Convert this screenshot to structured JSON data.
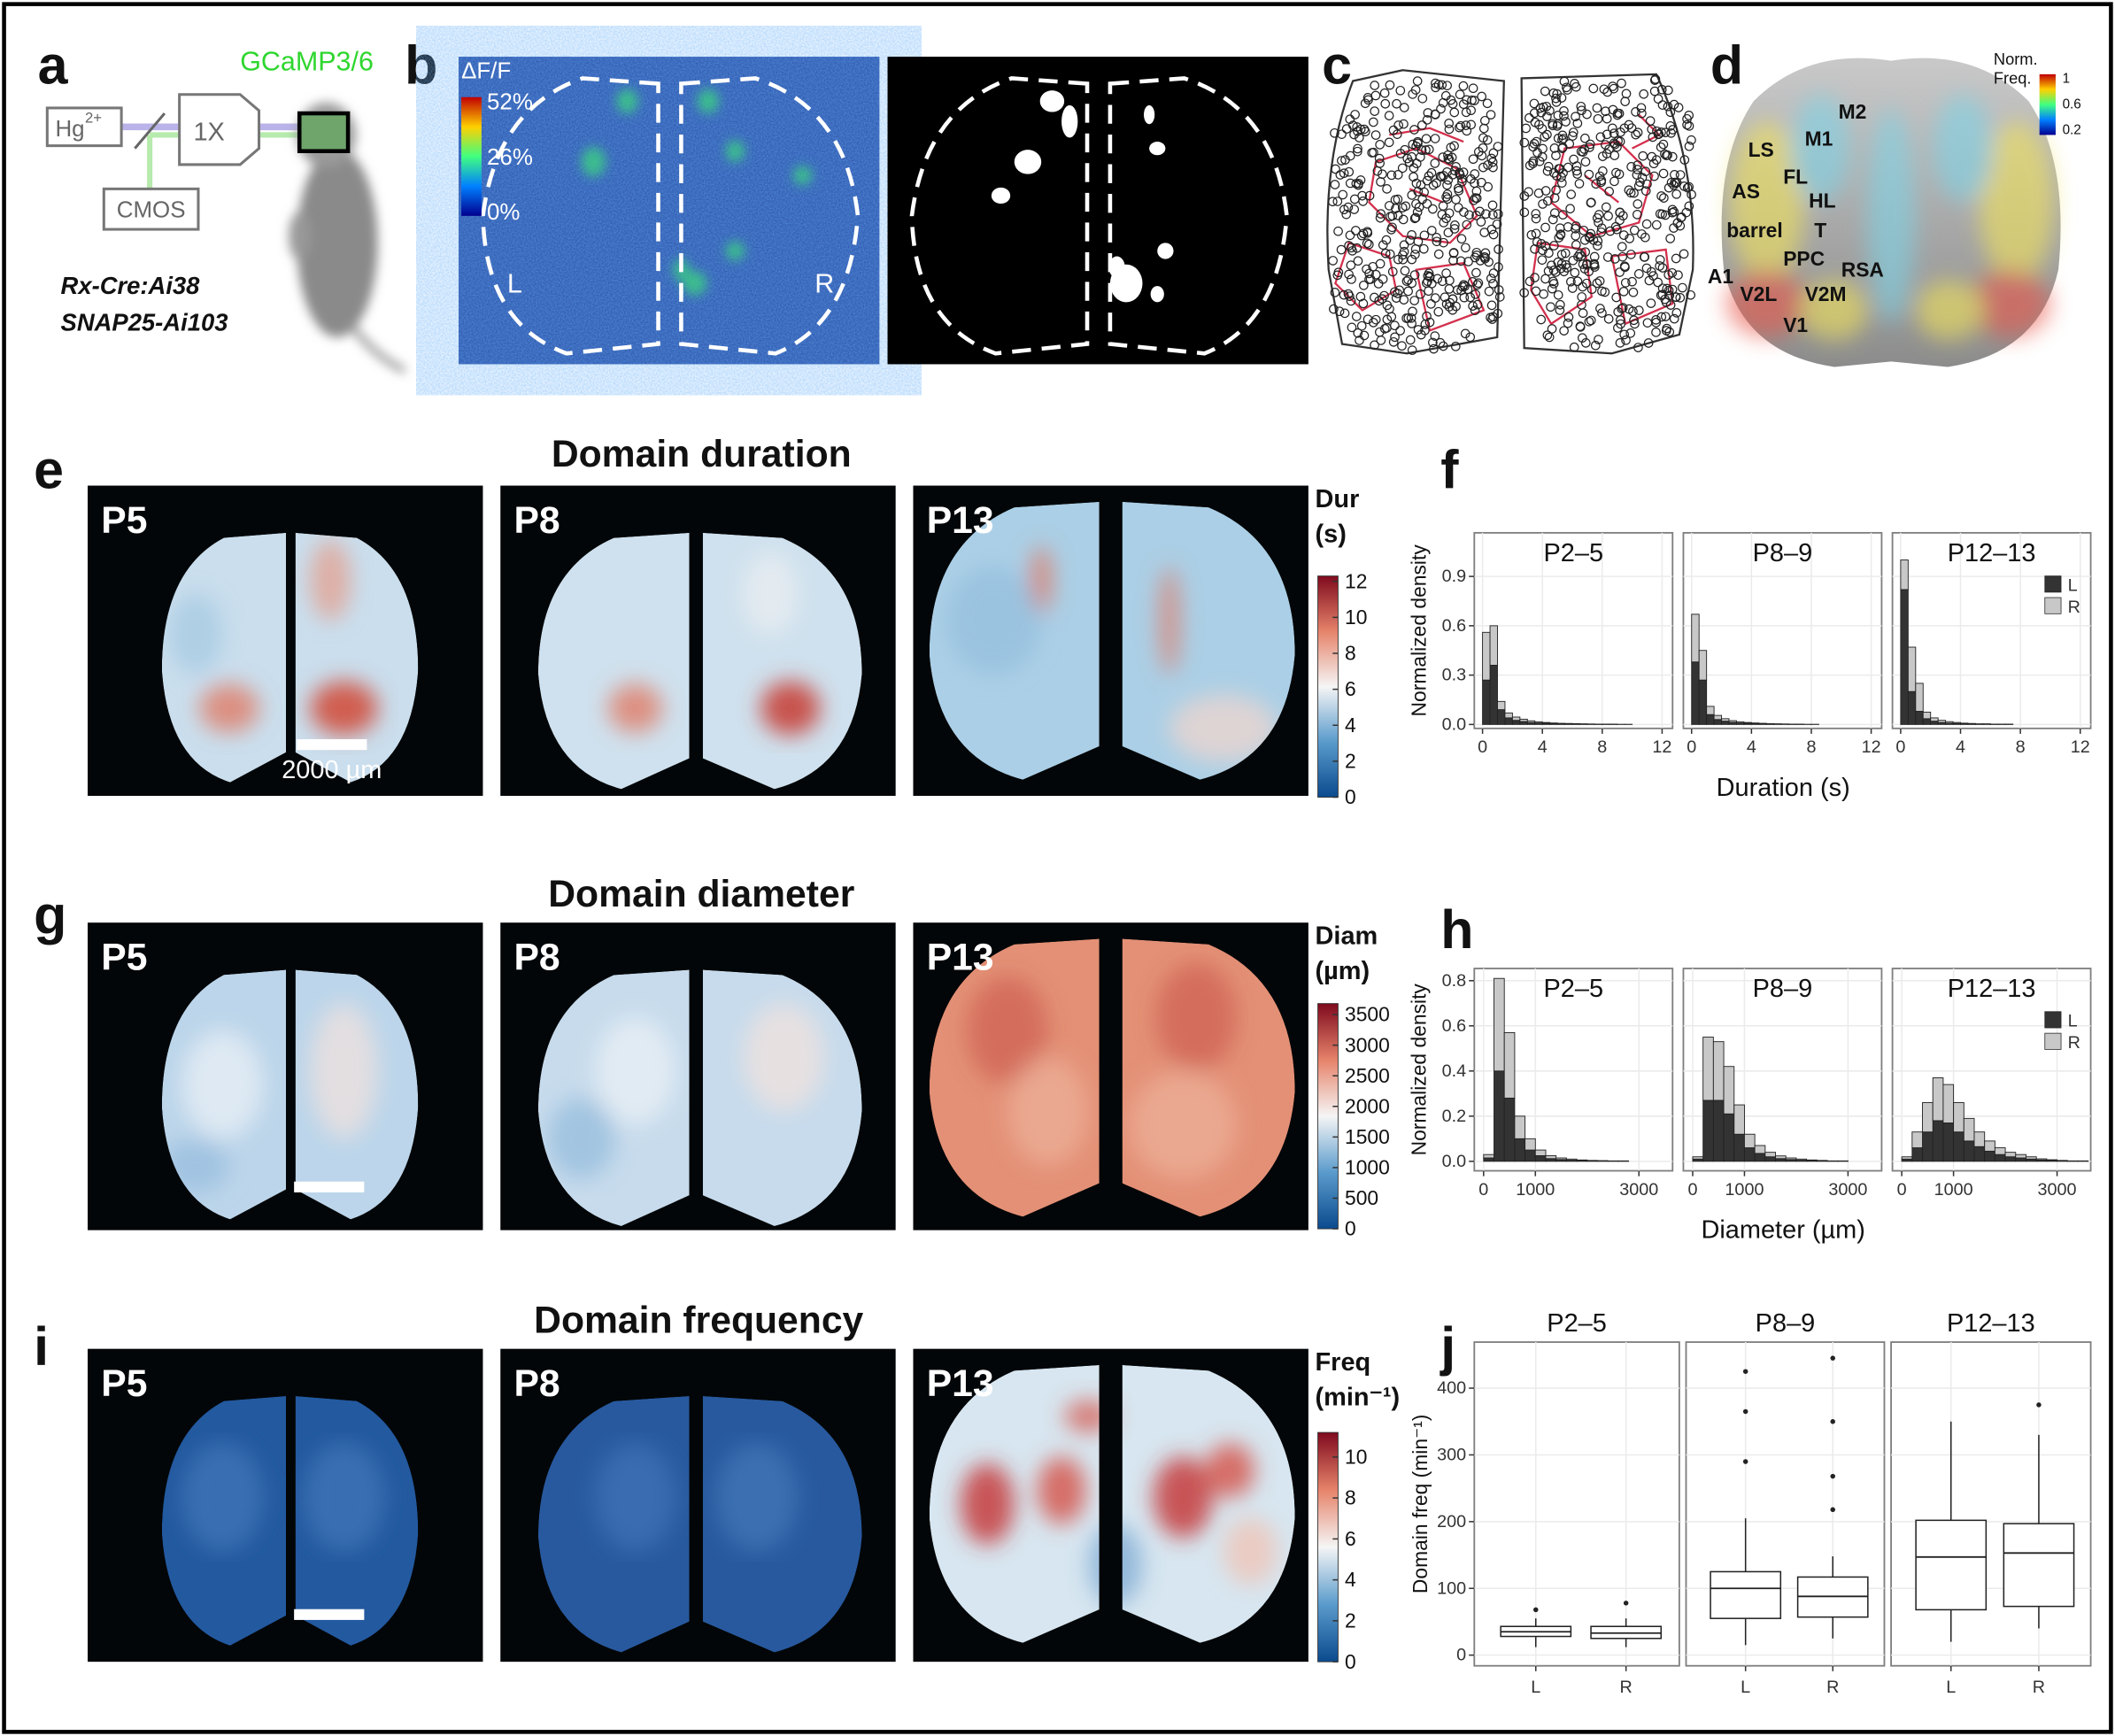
{
  "panels": {
    "a": {
      "label": "a",
      "light_source": "Hg",
      "light_source_charge": "2+",
      "objective": "1X",
      "camera": "CMOS",
      "indicator": "GCaMP3/6",
      "genotypes": [
        "Rx-Cre:Ai38",
        "SNAP25-Ai103"
      ]
    },
    "b": {
      "label": "b",
      "colorbar": {
        "title": "ΔF/F",
        "lim": [
          -2,
          54
        ],
        "ticks": [
          {
            "value": 52,
            "label": "52%"
          },
          {
            "value": 26,
            "label": "26%"
          },
          {
            "value": 0,
            "label": "0%"
          }
        ]
      },
      "hemispheres": [
        "L",
        "R"
      ]
    },
    "c": {
      "label": "c"
    },
    "d": {
      "label": "d",
      "colorbar": {
        "title": [
          "Norm.",
          "Freq."
        ],
        "lim": [
          0.1,
          1.05
        ],
        "ticks": [
          1,
          0.6,
          0.2
        ]
      },
      "regions": [
        "M2",
        "M1",
        "LS",
        "FL",
        "AS",
        "HL",
        "barrel",
        "T",
        "PPC",
        "RSA",
        "A1",
        "V2L",
        "V2M",
        "V1"
      ]
    },
    "e": {
      "label": "e",
      "title": "Domain duration",
      "ages": [
        "P5",
        "P8",
        "P13"
      ],
      "scale_bar": "2000 µm",
      "colorbar": {
        "title": [
          "Dur",
          "(s)"
        ],
        "lim": [
          0,
          12.3
        ],
        "ticks": [
          0,
          2,
          4,
          6,
          8,
          10,
          12
        ]
      }
    },
    "g": {
      "label": "g",
      "title": "Domain diameter",
      "ages": [
        "P5",
        "P8",
        "P13"
      ],
      "colorbar": {
        "title": [
          "Diam",
          "(µm)"
        ],
        "lim": [
          0,
          3680
        ],
        "ticks": [
          0,
          500,
          1000,
          1500,
          2000,
          2500,
          3000,
          3500
        ]
      }
    },
    "i": {
      "label": "i",
      "title": "Domain frequency",
      "ages": [
        "P5",
        "P8",
        "P13"
      ],
      "colorbar": {
        "title": [
          "Freq",
          "(min⁻¹)"
        ],
        "lim": [
          0,
          11.2
        ],
        "ticks": [
          0,
          2,
          4,
          6,
          8,
          10
        ]
      }
    }
  },
  "chart_data": [
    {
      "type": "histogram",
      "label": "f",
      "facets": [
        "P2–5",
        "P8–9",
        "P12–13"
      ],
      "stacked": true,
      "grid": true,
      "legend": "upper right",
      "xlabel": "Duration (s)",
      "ylabel": "Normalized density",
      "xlim": [
        -0.55,
        12.7
      ],
      "ylim": [
        -0.024,
        1.165
      ],
      "xticks": [
        0,
        4,
        8,
        12
      ],
      "yticks": [
        {
          "value": 0,
          "label": "0.0"
        },
        0.3,
        0.6,
        0.9
      ],
      "bins": [
        0,
        0.5,
        1,
        1.5,
        2,
        2.5,
        3,
        3.5,
        4,
        4.5,
        5,
        5.5,
        6,
        6.5,
        7,
        7.5,
        8,
        8.5,
        9,
        9.5,
        10,
        10.5,
        11,
        11.5,
        12
      ],
      "series": [
        {
          "name": "L",
          "color": "#333333",
          "values": [
            [
              0.27,
              0.36,
              0.09,
              0.04,
              0.025,
              0.018,
              0.012,
              0.009,
              0.007,
              0.005,
              0.004,
              0.003,
              0.003,
              0.002,
              0.002,
              0.001,
              0.001,
              0.001,
              0.001,
              0.001,
              0,
              0,
              0,
              0
            ],
            [
              0.38,
              0.27,
              0.06,
              0.03,
              0.02,
              0.013,
              0.009,
              0.007,
              0.005,
              0.004,
              0.003,
              0.002,
              0.002,
              0.001,
              0.001,
              0.001,
              0.001,
              0,
              0,
              0,
              0,
              0,
              0,
              0
            ],
            [
              0.82,
              0.2,
              0.08,
              0.035,
              0.02,
              0.012,
              0.008,
              0.006,
              0.004,
              0.003,
              0.002,
              0.002,
              0.001,
              0.001,
              0.001,
              0,
              0,
              0,
              0,
              0,
              0,
              0,
              0,
              0
            ]
          ]
        },
        {
          "name": "R",
          "color": "#c8c8c8",
          "values": [
            [
              0.29,
              0.24,
              0.05,
              0.03,
              0.02,
              0.014,
              0.01,
              0.007,
              0.005,
              0.004,
              0.003,
              0.003,
              0.002,
              0.002,
              0.001,
              0.001,
              0.001,
              0.001,
              0,
              0,
              0,
              0,
              0,
              0
            ],
            [
              0.29,
              0.18,
              0.05,
              0.025,
              0.015,
              0.01,
              0.007,
              0.005,
              0.004,
              0.003,
              0.002,
              0.002,
              0.001,
              0.001,
              0.001,
              0,
              0,
              0,
              0,
              0,
              0,
              0,
              0,
              0
            ],
            [
              0.18,
              0.27,
              0.17,
              0.04,
              0.02,
              0.013,
              0.009,
              0.006,
              0.004,
              0.003,
              0.002,
              0.002,
              0.001,
              0.001,
              0.001,
              0,
              0,
              0,
              0,
              0,
              0,
              0,
              0,
              0
            ]
          ]
        }
      ]
    },
    {
      "type": "histogram",
      "label": "h",
      "facets": [
        "P2–5",
        "P8–9",
        "P12–13"
      ],
      "stacked": true,
      "grid": true,
      "legend": "upper right",
      "xlabel": "Diameter (µm)",
      "ylabel": "Normalized density",
      "xlim": [
        -180,
        3650
      ],
      "ylim": [
        -0.042,
        0.854
      ],
      "xticks": [
        0,
        1000,
        3000
      ],
      "yticks": [
        {
          "value": 0,
          "label": "0.0"
        },
        0.2,
        0.4,
        0.6,
        0.8
      ],
      "bins": [
        0,
        200,
        400,
        600,
        800,
        1000,
        1200,
        1400,
        1600,
        1800,
        2000,
        2200,
        2400,
        2600,
        2800,
        3000,
        3200,
        3400,
        3600
      ],
      "series": [
        {
          "name": "L",
          "color": "#333333",
          "values": [
            [
              0.015,
              0.4,
              0.28,
              0.1,
              0.05,
              0.025,
              0.012,
              0.008,
              0.005,
              0.003,
              0.002,
              0.002,
              0.001,
              0.001,
              0,
              0,
              0,
              0
            ],
            [
              0.01,
              0.27,
              0.27,
              0.21,
              0.12,
              0.06,
              0.035,
              0.02,
              0.012,
              0.008,
              0.005,
              0.003,
              0.002,
              0.001,
              0.001,
              0,
              0,
              0
            ],
            [
              0.01,
              0.06,
              0.13,
              0.18,
              0.17,
              0.13,
              0.09,
              0.065,
              0.045,
              0.03,
              0.02,
              0.015,
              0.01,
              0.006,
              0.004,
              0.002,
              0.001,
              0.001
            ]
          ]
        },
        {
          "name": "R",
          "color": "#c8c8c8",
          "values": [
            [
              0.015,
              0.41,
              0.29,
              0.1,
              0.05,
              0.025,
              0.013,
              0.007,
              0.005,
              0.003,
              0.002,
              0.001,
              0.001,
              0.001,
              0,
              0,
              0,
              0
            ],
            [
              0.01,
              0.28,
              0.26,
              0.21,
              0.13,
              0.06,
              0.035,
              0.02,
              0.012,
              0.007,
              0.005,
              0.003,
              0.002,
              0.001,
              0.001,
              0,
              0,
              0
            ],
            [
              0.01,
              0.07,
              0.13,
              0.19,
              0.17,
              0.13,
              0.1,
              0.065,
              0.045,
              0.03,
              0.02,
              0.015,
              0.01,
              0.005,
              0.003,
              0.002,
              0.001,
              0.001
            ]
          ]
        }
      ]
    },
    {
      "type": "box",
      "label": "j",
      "facets": [
        "P2–5",
        "P8–9",
        "P12–13"
      ],
      "categories": [
        "L",
        "R"
      ],
      "grid": true,
      "ylabel": "Domain freq (min⁻¹)",
      "ylim": [
        -16,
        469
      ],
      "yticks": [
        0,
        100,
        200,
        300,
        400
      ],
      "boxes": [
        [
          {
            "min": 12,
            "q1": 28,
            "median": 35,
            "q3": 43,
            "max": 55,
            "outliers": [
              68
            ]
          },
          {
            "min": 12,
            "q1": 25,
            "median": 33,
            "q3": 43,
            "max": 55,
            "outliers": [
              78
            ]
          }
        ],
        [
          {
            "min": 15,
            "q1": 55,
            "median": 100,
            "q3": 125,
            "max": 205,
            "outliers": [
              290,
              365,
              425
            ]
          },
          {
            "min": 25,
            "q1": 57,
            "median": 88,
            "q3": 117,
            "max": 148,
            "outliers": [
              218,
              268,
              350,
              445
            ]
          }
        ],
        [
          {
            "min": 20,
            "q1": 68,
            "median": 147,
            "q3": 202,
            "max": 350,
            "outliers": []
          },
          {
            "min": 40,
            "q1": 73,
            "median": 153,
            "q3": 197,
            "max": 330,
            "outliers": [
              375
            ]
          }
        ]
      ]
    }
  ]
}
